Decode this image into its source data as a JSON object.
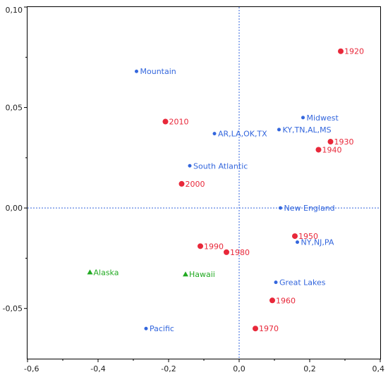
{
  "colors": {
    "blue": "#3366dd",
    "red": "#e8283a",
    "green": "#22aa22",
    "axis": "#000000",
    "refline": "#3366dd"
  },
  "chart_data": {
    "type": "scatter",
    "xlim": [
      -0.6,
      0.4
    ],
    "ylim": [
      -0.075,
      0.1
    ],
    "xticks": [
      -0.6,
      -0.4,
      -0.2,
      0.0,
      0.2,
      0.4
    ],
    "yticks": [
      -0.05,
      0.0,
      0.05,
      0.1
    ],
    "xtick_labels": [
      "-0,6",
      "-0,4",
      "-0,2",
      "0,0",
      "0,2",
      "0,4"
    ],
    "ytick_labels": [
      "-0,05",
      "0,00",
      "0,05",
      "0,10"
    ],
    "grid": false,
    "reference_lines": {
      "x": 0,
      "y": 0
    },
    "series": [
      {
        "marker": "circle-small",
        "color": "blue",
        "points": [
          {
            "label": "Mountain",
            "x": -0.291,
            "y": 0.068
          },
          {
            "label": "Midwest",
            "x": 0.181,
            "y": 0.045
          },
          {
            "label": "AR,LA,OK,TX",
            "x": -0.07,
            "y": 0.037
          },
          {
            "label": "KY,TN,AL,MS",
            "x": 0.113,
            "y": 0.039
          },
          {
            "label": "South Atlantic",
            "x": -0.14,
            "y": 0.021
          },
          {
            "label": "New England",
            "x": 0.117,
            "y": 0.0
          },
          {
            "label": "NY,NJ,PA",
            "x": 0.165,
            "y": -0.017
          },
          {
            "label": "Great Lakes",
            "x": 0.104,
            "y": -0.037
          },
          {
            "label": "Pacific",
            "x": -0.264,
            "y": -0.06
          }
        ]
      },
      {
        "marker": "circle",
        "color": "red",
        "points": [
          {
            "label": "1920",
            "x": 0.288,
            "y": 0.078
          },
          {
            "label": "2010",
            "x": -0.209,
            "y": 0.043
          },
          {
            "label": "1930",
            "x": 0.259,
            "y": 0.033
          },
          {
            "label": "1940",
            "x": 0.225,
            "y": 0.029
          },
          {
            "label": "2000",
            "x": -0.163,
            "y": 0.012
          },
          {
            "label": "1950",
            "x": 0.158,
            "y": -0.014
          },
          {
            "label": "1990",
            "x": -0.11,
            "y": -0.019
          },
          {
            "label": "1980",
            "x": -0.036,
            "y": -0.022
          },
          {
            "label": "1960",
            "x": 0.094,
            "y": -0.046
          },
          {
            "label": "1970",
            "x": 0.046,
            "y": -0.06
          }
        ]
      },
      {
        "marker": "triangle",
        "color": "green",
        "points": [
          {
            "label": "Alaska",
            "x": -0.423,
            "y": -0.032
          },
          {
            "label": "Hawaii",
            "x": -0.152,
            "y": -0.033
          }
        ]
      }
    ]
  }
}
